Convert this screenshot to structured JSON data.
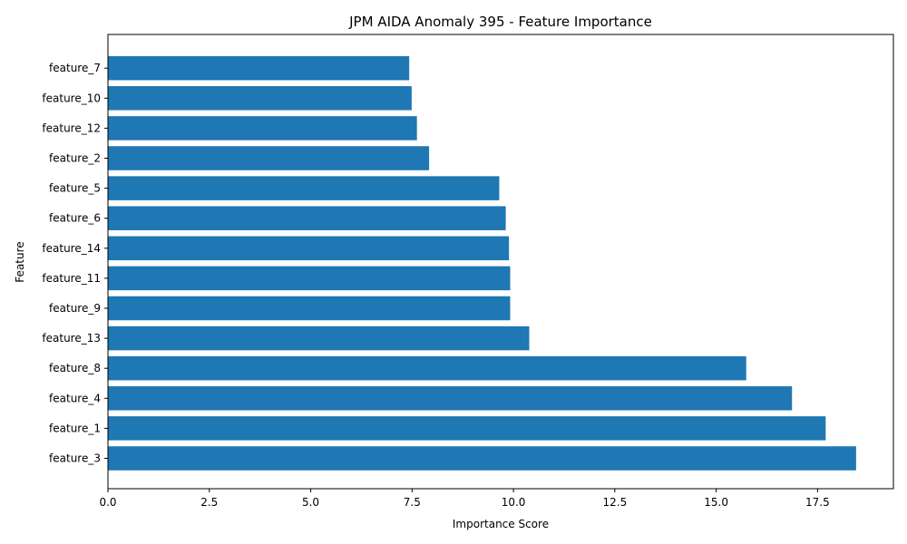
{
  "chart_data": {
    "type": "bar",
    "orientation": "horizontal",
    "title": "JPM AIDA Anomaly 395 - Feature Importance",
    "xlabel": "Importance Score",
    "ylabel": "Feature",
    "categories": [
      "feature_3",
      "feature_1",
      "feature_4",
      "feature_8",
      "feature_13",
      "feature_9",
      "feature_11",
      "feature_14",
      "feature_6",
      "feature_5",
      "feature_2",
      "feature_12",
      "feature_10",
      "feature_7"
    ],
    "values": [
      18.45,
      17.7,
      16.87,
      15.74,
      10.39,
      9.92,
      9.92,
      9.89,
      9.81,
      9.65,
      7.92,
      7.62,
      7.49,
      7.43
    ],
    "xlim": [
      0,
      19.37
    ],
    "xticks": [
      0.0,
      2.5,
      5.0,
      7.5,
      10.0,
      12.5,
      15.0,
      17.5
    ],
    "xtick_labels": [
      "0.0",
      "2.5",
      "5.0",
      "7.5",
      "10.0",
      "12.5",
      "15.0",
      "17.5"
    ],
    "bar_color": "#1f77b4",
    "grid": false,
    "legend": "none"
  }
}
